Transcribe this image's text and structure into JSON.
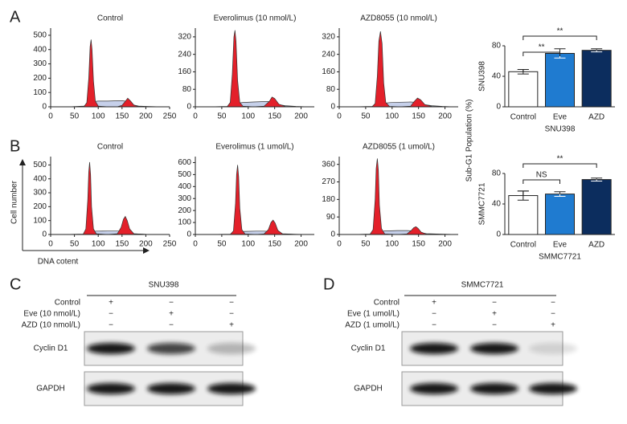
{
  "panel_labels": [
    "A",
    "B",
    "C",
    "D"
  ],
  "shared_axis_label": "Sub-G1 Population (%)",
  "cell_axis": {
    "y": "Cell number",
    "x": "DNA cotent"
  },
  "chart_data": [
    {
      "type": "area",
      "title": "Control",
      "x": [
        40,
        70,
        76,
        80,
        83,
        85,
        87,
        90,
        94,
        100,
        120,
        140,
        150,
        156,
        162,
        168,
        175,
        185,
        200,
        230
      ],
      "series": [
        {
          "color": "#c6d0ea",
          "values": [
            0,
            5,
            15,
            25,
            30,
            30,
            32,
            35,
            38,
            40,
            40,
            42,
            42,
            40,
            35,
            25,
            12,
            5,
            3,
            0
          ]
        },
        {
          "color": "#e3202a",
          "values": [
            0,
            0,
            30,
            200,
            420,
            470,
            400,
            180,
            40,
            5,
            0,
            0,
            10,
            35,
            60,
            40,
            12,
            2,
            0,
            0
          ]
        }
      ],
      "xlim": [
        0,
        250
      ],
      "ylim": [
        0,
        550
      ],
      "xticks": [
        0,
        50,
        100,
        150,
        200,
        250
      ],
      "yticks": [
        0,
        100,
        200,
        300,
        400,
        500
      ]
    },
    {
      "type": "area",
      "title": "Everolimus (10 nmol/L)",
      "x": [
        30,
        60,
        66,
        70,
        73,
        75,
        77,
        80,
        84,
        90,
        110,
        130,
        140,
        145,
        150,
        158,
        170,
        190,
        215
      ],
      "series": [
        {
          "color": "#c6d0ea",
          "values": [
            0,
            2,
            8,
            12,
            14,
            15,
            15,
            16,
            18,
            20,
            22,
            24,
            24,
            22,
            18,
            10,
            5,
            2,
            0
          ]
        },
        {
          "color": "#e3202a",
          "values": [
            0,
            0,
            20,
            150,
            320,
            350,
            300,
            120,
            20,
            3,
            0,
            3,
            25,
            45,
            38,
            12,
            2,
            0,
            0
          ]
        }
      ],
      "xlim": [
        0,
        225
      ],
      "ylim": [
        0,
        360
      ],
      "xticks": [
        0,
        50,
        100,
        150,
        200
      ],
      "yticks": [
        0,
        80,
        160,
        240,
        320
      ]
    },
    {
      "type": "area",
      "title": "AZD8055 (10 nmol/L)",
      "x": [
        30,
        62,
        68,
        72,
        75,
        78,
        81,
        84,
        88,
        95,
        115,
        135,
        142,
        148,
        154,
        162,
        175,
        195,
        215
      ],
      "series": [
        {
          "color": "#c6d0ea",
          "values": [
            0,
            2,
            7,
            11,
            13,
            14,
            14,
            15,
            17,
            19,
            21,
            22,
            21,
            19,
            16,
            10,
            5,
            2,
            0
          ]
        },
        {
          "color": "#e3202a",
          "values": [
            0,
            0,
            15,
            140,
            300,
            345,
            290,
            110,
            20,
            2,
            0,
            3,
            25,
            40,
            32,
            10,
            2,
            0,
            0
          ]
        }
      ],
      "xlim": [
        0,
        225
      ],
      "ylim": [
        0,
        360
      ],
      "xticks": [
        0,
        50,
        100,
        150,
        200
      ],
      "yticks": [
        0,
        80,
        160,
        240,
        320
      ]
    },
    {
      "type": "area",
      "title": "Control",
      "x": [
        30,
        68,
        74,
        78,
        80,
        82,
        84,
        86,
        90,
        96,
        120,
        140,
        148,
        153,
        157,
        161,
        166,
        175,
        200,
        230
      ],
      "series": [
        {
          "color": "#c6d0ea",
          "values": [
            0,
            3,
            10,
            15,
            18,
            20,
            20,
            20,
            22,
            24,
            25,
            25,
            24,
            22,
            20,
            16,
            10,
            5,
            2,
            0
          ]
        },
        {
          "color": "#e3202a",
          "values": [
            0,
            0,
            40,
            250,
            450,
            520,
            430,
            200,
            40,
            5,
            0,
            5,
            50,
            110,
            130,
            100,
            40,
            5,
            0,
            0
          ]
        }
      ],
      "xlim": [
        0,
        250
      ],
      "ylim": [
        0,
        560
      ],
      "xticks": [
        0,
        50,
        100,
        150,
        200,
        250
      ],
      "yticks": [
        0,
        100,
        200,
        300,
        400,
        500
      ]
    },
    {
      "type": "area",
      "title": "Everolimus (1 umol/L)",
      "x": [
        30,
        66,
        72,
        76,
        78,
        80,
        82,
        84,
        88,
        94,
        115,
        130,
        138,
        143,
        147,
        151,
        156,
        165,
        190,
        220
      ],
      "series": [
        {
          "color": "#c6d0ea",
          "values": [
            0,
            3,
            10,
            16,
            20,
            22,
            22,
            22,
            24,
            26,
            28,
            28,
            26,
            24,
            22,
            18,
            12,
            6,
            2,
            0
          ]
        },
        {
          "color": "#e3202a",
          "values": [
            0,
            0,
            30,
            260,
            500,
            580,
            480,
            220,
            40,
            5,
            0,
            5,
            40,
            100,
            120,
            95,
            35,
            5,
            0,
            0
          ]
        }
      ],
      "xlim": [
        0,
        225
      ],
      "ylim": [
        0,
        650
      ],
      "xticks": [
        0,
        50,
        100,
        150,
        200
      ],
      "yticks": [
        0,
        100,
        200,
        300,
        400,
        500,
        600
      ]
    },
    {
      "type": "area",
      "title": "AZD8055 (1 umol/L)",
      "x": [
        30,
        58,
        64,
        68,
        70,
        72,
        74,
        76,
        80,
        86,
        110,
        128,
        136,
        141,
        145,
        149,
        155,
        165,
        190,
        220
      ],
      "series": [
        {
          "color": "#c6d0ea",
          "values": [
            0,
            2,
            6,
            10,
            12,
            13,
            13,
            14,
            16,
            18,
            20,
            20,
            19,
            17,
            15,
            12,
            8,
            4,
            2,
            0
          ]
        },
        {
          "color": "#e3202a",
          "values": [
            0,
            0,
            25,
            180,
            340,
            390,
            330,
            150,
            30,
            3,
            0,
            3,
            20,
            35,
            40,
            32,
            12,
            2,
            0,
            0
          ]
        }
      ],
      "xlim": [
        0,
        225
      ],
      "ylim": [
        0,
        400
      ],
      "xticks": [
        0,
        50,
        100,
        150,
        200
      ],
      "yticks": [
        0,
        90,
        180,
        270,
        360
      ]
    },
    {
      "type": "bar",
      "ylabel": "SNU398",
      "xlabel": "SNU398",
      "categories": [
        "Control",
        "Eve",
        "AZD"
      ],
      "values": [
        46,
        70,
        74
      ],
      "errors": [
        3,
        6,
        2
      ],
      "colors": [
        "#ffffff",
        "#1f7bd0",
        "#0c2d5e"
      ],
      "ylim": [
        0,
        80
      ],
      "yticks": [
        0,
        40,
        80
      ],
      "annotations": [
        {
          "text": "**",
          "between": [
            0,
            1
          ]
        },
        {
          "text": "**",
          "between": [
            0,
            2
          ]
        }
      ]
    },
    {
      "type": "bar",
      "ylabel": "SMMC7721",
      "xlabel": "SMMC7721",
      "categories": [
        "Control",
        "Eve",
        "AZD"
      ],
      "values": [
        51,
        53,
        72
      ],
      "errors": [
        6,
        3,
        2
      ],
      "colors": [
        "#ffffff",
        "#1f7bd0",
        "#0c2d5e"
      ],
      "ylim": [
        0,
        80
      ],
      "yticks": [
        0,
        40,
        80
      ],
      "annotations": [
        {
          "text": "NS",
          "between": [
            0,
            1
          ]
        },
        {
          "text": "**",
          "between": [
            0,
            2
          ]
        }
      ]
    }
  ],
  "blots": [
    {
      "title": "SNU398",
      "conditions": [
        {
          "label": "Control",
          "marks": [
            "+",
            "−",
            "−"
          ]
        },
        {
          "label": "Eve (10 nmol/L)",
          "marks": [
            "−",
            "+",
            "−"
          ]
        },
        {
          "label": "AZD (10 nmol/L)",
          "marks": [
            "−",
            "−",
            "+"
          ]
        }
      ],
      "rows": [
        "Cyclin D1",
        "GAPDH"
      ]
    },
    {
      "title": "SMMC7721",
      "conditions": [
        {
          "label": "Control",
          "marks": [
            "+",
            "−",
            "−"
          ]
        },
        {
          "label": "Eve (1 umol/L)",
          "marks": [
            "−",
            "+",
            "−"
          ]
        },
        {
          "label": "AZD (1 umol/L)",
          "marks": [
            "−",
            "−",
            "+"
          ]
        }
      ],
      "rows": [
        "Cyclin D1",
        "GAPDH"
      ]
    }
  ]
}
